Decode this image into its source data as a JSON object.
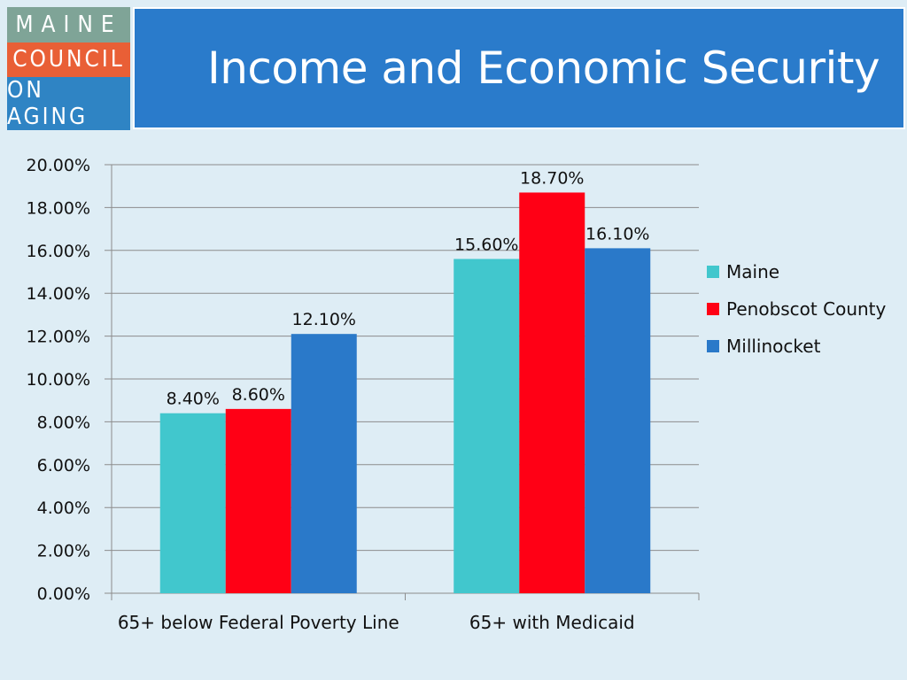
{
  "logo": {
    "line1": "MAINE",
    "line2": "COUNCIL",
    "line3": "ON AGING"
  },
  "header": {
    "title": "Income and Economic Security"
  },
  "chart_data": {
    "type": "bar",
    "title": "",
    "xlabel": "",
    "ylabel": "",
    "categories": [
      "65+ below Federal Poverty Line",
      "65+ with Medicaid"
    ],
    "series": [
      {
        "name": "Maine",
        "values": [
          8.4,
          15.6
        ],
        "labels": [
          "8.40%",
          "15.60%"
        ],
        "color": "#41c7cd"
      },
      {
        "name": "Penobscot County",
        "values": [
          8.6,
          18.7
        ],
        "labels": [
          "8.60%",
          "18.70%"
        ],
        "color": "#ff0015"
      },
      {
        "name": "Millinocket",
        "values": [
          12.1,
          16.1
        ],
        "labels": [
          "12.10%",
          "16.10%"
        ],
        "color": "#2a79c9"
      }
    ],
    "ylim": [
      0,
      20
    ],
    "yticks": [
      0,
      2,
      4,
      6,
      8,
      10,
      12,
      14,
      16,
      18,
      20
    ],
    "ytick_labels": [
      "0.00%",
      "2.00%",
      "4.00%",
      "6.00%",
      "8.00%",
      "10.00%",
      "12.00%",
      "14.00%",
      "16.00%",
      "18.00%",
      "20.00%"
    ],
    "grid": true,
    "legend": "right"
  }
}
